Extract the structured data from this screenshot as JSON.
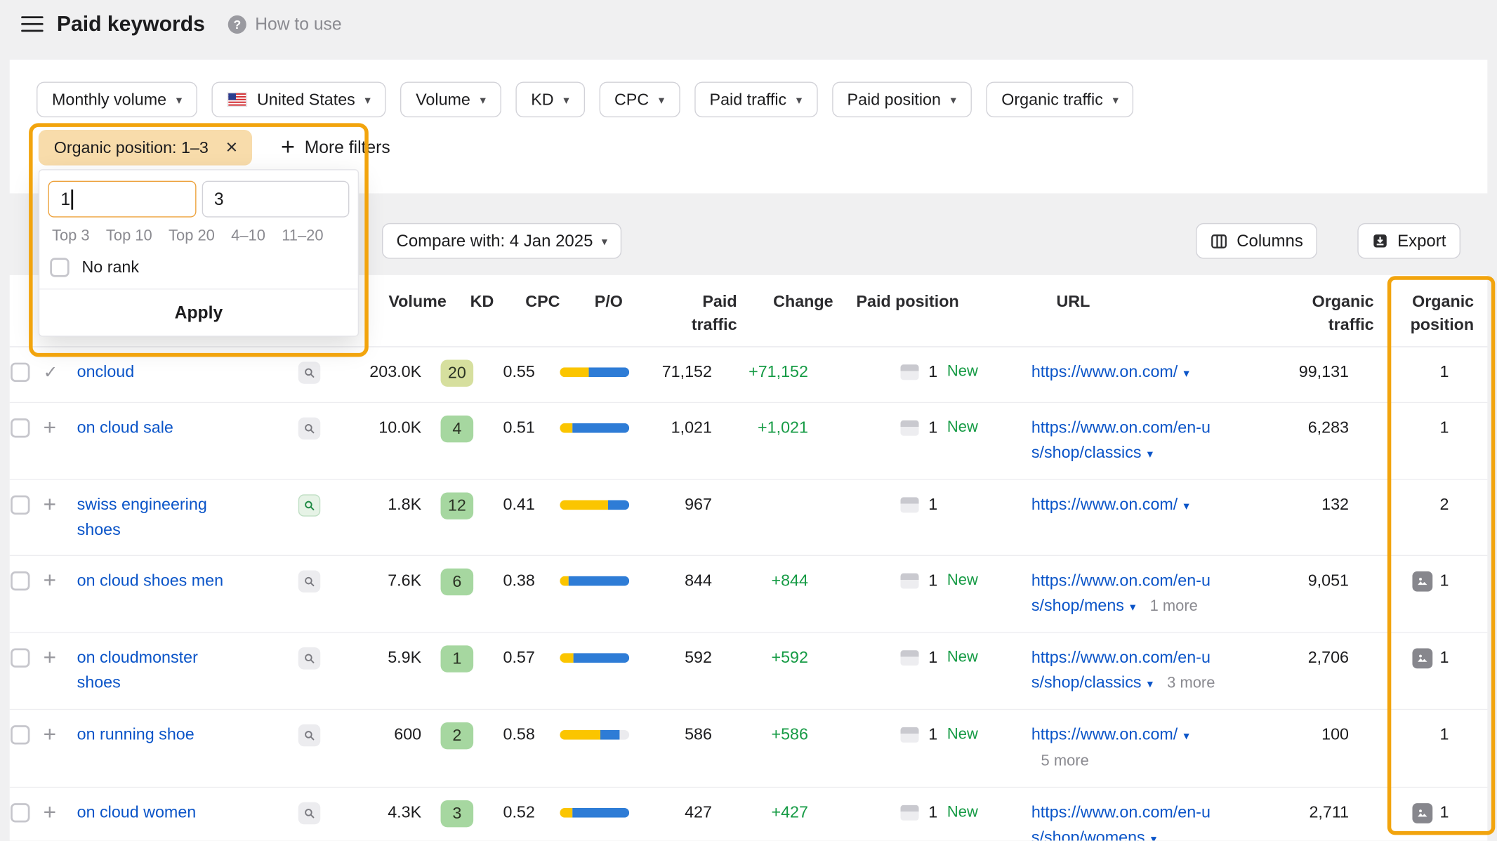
{
  "header": {
    "title": "Paid keywords",
    "help": "How to use"
  },
  "icons": {
    "caret": "▾",
    "close": "×",
    "plus": "+",
    "check": "✓",
    "help": "?"
  },
  "colors": {
    "accent_orange": "#f2a40d",
    "link_blue": "#0a54c8",
    "positive_green": "#169b45",
    "bar_paid_yellow": "#fbc500",
    "bar_organic_blue": "#2e7cd6",
    "chip_bg": "#f8dcab",
    "kd_green": "#a6d7a0",
    "kd_olive": "#d6df9e"
  },
  "filters": {
    "buttons": [
      {
        "label": "Monthly volume",
        "flag": false
      },
      {
        "label": "United States",
        "flag": true
      },
      {
        "label": "Volume",
        "flag": false
      },
      {
        "label": "KD",
        "flag": false
      },
      {
        "label": "CPC",
        "flag": false
      },
      {
        "label": "Paid traffic",
        "flag": false
      },
      {
        "label": "Paid position",
        "flag": false
      },
      {
        "label": "Organic traffic",
        "flag": false
      }
    ],
    "chip_label": "Organic position: 1–3",
    "more_filters": "More filters"
  },
  "popover": {
    "from": "1",
    "to": "3",
    "quick_links": [
      "Top 3",
      "Top 10",
      "Top 20",
      "4–10",
      "11–20"
    ],
    "no_rank": "No rank",
    "apply": "Apply"
  },
  "toolbar": {
    "compare": "Compare with: 4 Jan 2025",
    "columns": "Columns",
    "export": "Export"
  },
  "table": {
    "new_label": "New",
    "headers": {
      "volume": "Volume",
      "kd": "KD",
      "cpc": "CPC",
      "po": "P/O",
      "paid_traffic": "Paid\ntraffic",
      "change": "Change",
      "paid_position": "Paid position",
      "url": "URL",
      "organic_traffic": "Organic\ntraffic",
      "organic_position": "Organic\nposition"
    },
    "rows": [
      {
        "keyword": "oncloud",
        "added": true,
        "serp_green": false,
        "volume": "203.0K",
        "kd": "20",
        "kd_color": "#d6df9e",
        "cpc": "0.55",
        "po_yellow": 42,
        "po_blue": 58,
        "paid_traffic": "71,152",
        "change": "+71,152",
        "paid_position": "1",
        "is_new": true,
        "url1": "https://www.on.com/",
        "caret1": true,
        "url2": "",
        "caret2": false,
        "more": "",
        "organic_traffic": "99,131",
        "organic_position": "1",
        "image": false
      },
      {
        "keyword": "on cloud sale",
        "added": false,
        "serp_green": false,
        "volume": "10.0K",
        "kd": "4",
        "kd_color": "#a6d7a0",
        "cpc": "0.51",
        "po_yellow": 18,
        "po_blue": 82,
        "paid_traffic": "1,021",
        "change": "+1,021",
        "paid_position": "1",
        "is_new": true,
        "url1": "https://www.on.com/en-u",
        "caret1": false,
        "url2": "s/shop/classics",
        "caret2": true,
        "more": "",
        "organic_traffic": "6,283",
        "organic_position": "1",
        "image": false
      },
      {
        "keyword": "swiss engineering shoes",
        "added": false,
        "serp_green": true,
        "volume": "1.8K",
        "kd": "12",
        "kd_color": "#a6d7a0",
        "cpc": "0.41",
        "po_yellow": 70,
        "po_blue": 30,
        "paid_traffic": "967",
        "change": "",
        "paid_position": "1",
        "is_new": false,
        "url1": "https://www.on.com/",
        "caret1": true,
        "url2": "",
        "caret2": false,
        "more": "",
        "organic_traffic": "132",
        "organic_position": "2",
        "image": false
      },
      {
        "keyword": "on cloud shoes men",
        "added": false,
        "serp_green": false,
        "volume": "7.6K",
        "kd": "6",
        "kd_color": "#a6d7a0",
        "cpc": "0.38",
        "po_yellow": 13,
        "po_blue": 87,
        "paid_traffic": "844",
        "change": "+844",
        "paid_position": "1",
        "is_new": true,
        "url1": "https://www.on.com/en-u",
        "caret1": false,
        "url2": "s/shop/mens",
        "caret2": true,
        "more": "1 more",
        "organic_traffic": "9,051",
        "organic_position": "1",
        "image": true
      },
      {
        "keyword": "on cloudmonster shoes",
        "added": false,
        "serp_green": false,
        "volume": "5.9K",
        "kd": "1",
        "kd_color": "#a6d7a0",
        "cpc": "0.57",
        "po_yellow": 20,
        "po_blue": 80,
        "paid_traffic": "592",
        "change": "+592",
        "paid_position": "1",
        "is_new": true,
        "url1": "https://www.on.com/en-u",
        "caret1": false,
        "url2": "s/shop/classics",
        "caret2": true,
        "more": "3 more",
        "organic_traffic": "2,706",
        "organic_position": "1",
        "image": true
      },
      {
        "keyword": "on running shoe",
        "added": false,
        "serp_green": false,
        "volume": "600",
        "kd": "2",
        "kd_color": "#a6d7a0",
        "cpc": "0.58",
        "po_yellow": 58,
        "po_blue": 28,
        "paid_traffic": "586",
        "change": "+586",
        "paid_position": "1",
        "is_new": true,
        "url1": "https://www.on.com/",
        "caret1": true,
        "url2": "",
        "caret2": false,
        "more": "5 more",
        "organic_traffic": "100",
        "organic_position": "1",
        "image": false
      },
      {
        "keyword": "on cloud women",
        "added": false,
        "serp_green": false,
        "volume": "4.3K",
        "kd": "3",
        "kd_color": "#a6d7a0",
        "cpc": "0.52",
        "po_yellow": 18,
        "po_blue": 82,
        "paid_traffic": "427",
        "change": "+427",
        "paid_position": "1",
        "is_new": true,
        "url1": "https://www.on.com/en-u",
        "caret1": false,
        "url2": "s/shop/womens",
        "caret2": true,
        "more": "",
        "organic_traffic": "2,711",
        "organic_position": "1",
        "image": true
      }
    ]
  }
}
